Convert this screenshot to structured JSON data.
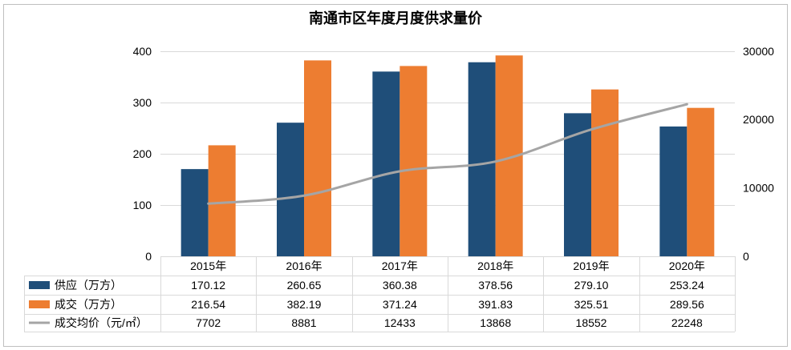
{
  "chart_data": {
    "type": "bar",
    "title": "南通市区年度月度供求量价",
    "categories": [
      "2015年",
      "2016年",
      "2017年",
      "2018年",
      "2019年",
      "2020年"
    ],
    "series": [
      {
        "name": "供应（万方）",
        "type": "bar",
        "axis": "left",
        "color": "#1F4E79",
        "values": [
          170.12,
          260.65,
          360.38,
          378.56,
          279.1,
          253.24
        ]
      },
      {
        "name": "成交（万方）",
        "type": "bar",
        "axis": "left",
        "color": "#ED7D31",
        "values": [
          216.54,
          382.19,
          371.24,
          391.83,
          325.51,
          289.56
        ]
      },
      {
        "name": "成交均价（元/㎡）",
        "type": "line",
        "axis": "right",
        "color": "#A5A5A5",
        "smooth": true,
        "values": [
          7702,
          8881,
          12433,
          13868,
          18552,
          22248
        ]
      }
    ],
    "y_left": {
      "range": [
        0,
        400
      ],
      "ticks": [
        0,
        100,
        200,
        300,
        400
      ]
    },
    "y_right": {
      "range": [
        0,
        30000
      ],
      "ticks": [
        0,
        10000,
        20000,
        30000
      ]
    },
    "grid": true,
    "legend": "bottom",
    "data_table": [
      [
        "170.12",
        "260.65",
        "360.38",
        "378.56",
        "279.10",
        "253.24"
      ],
      [
        "216.54",
        "382.19",
        "371.24",
        "391.83",
        "325.51",
        "289.56"
      ],
      [
        "7702",
        "8881",
        "12433",
        "13868",
        "18552",
        "22248"
      ]
    ]
  }
}
